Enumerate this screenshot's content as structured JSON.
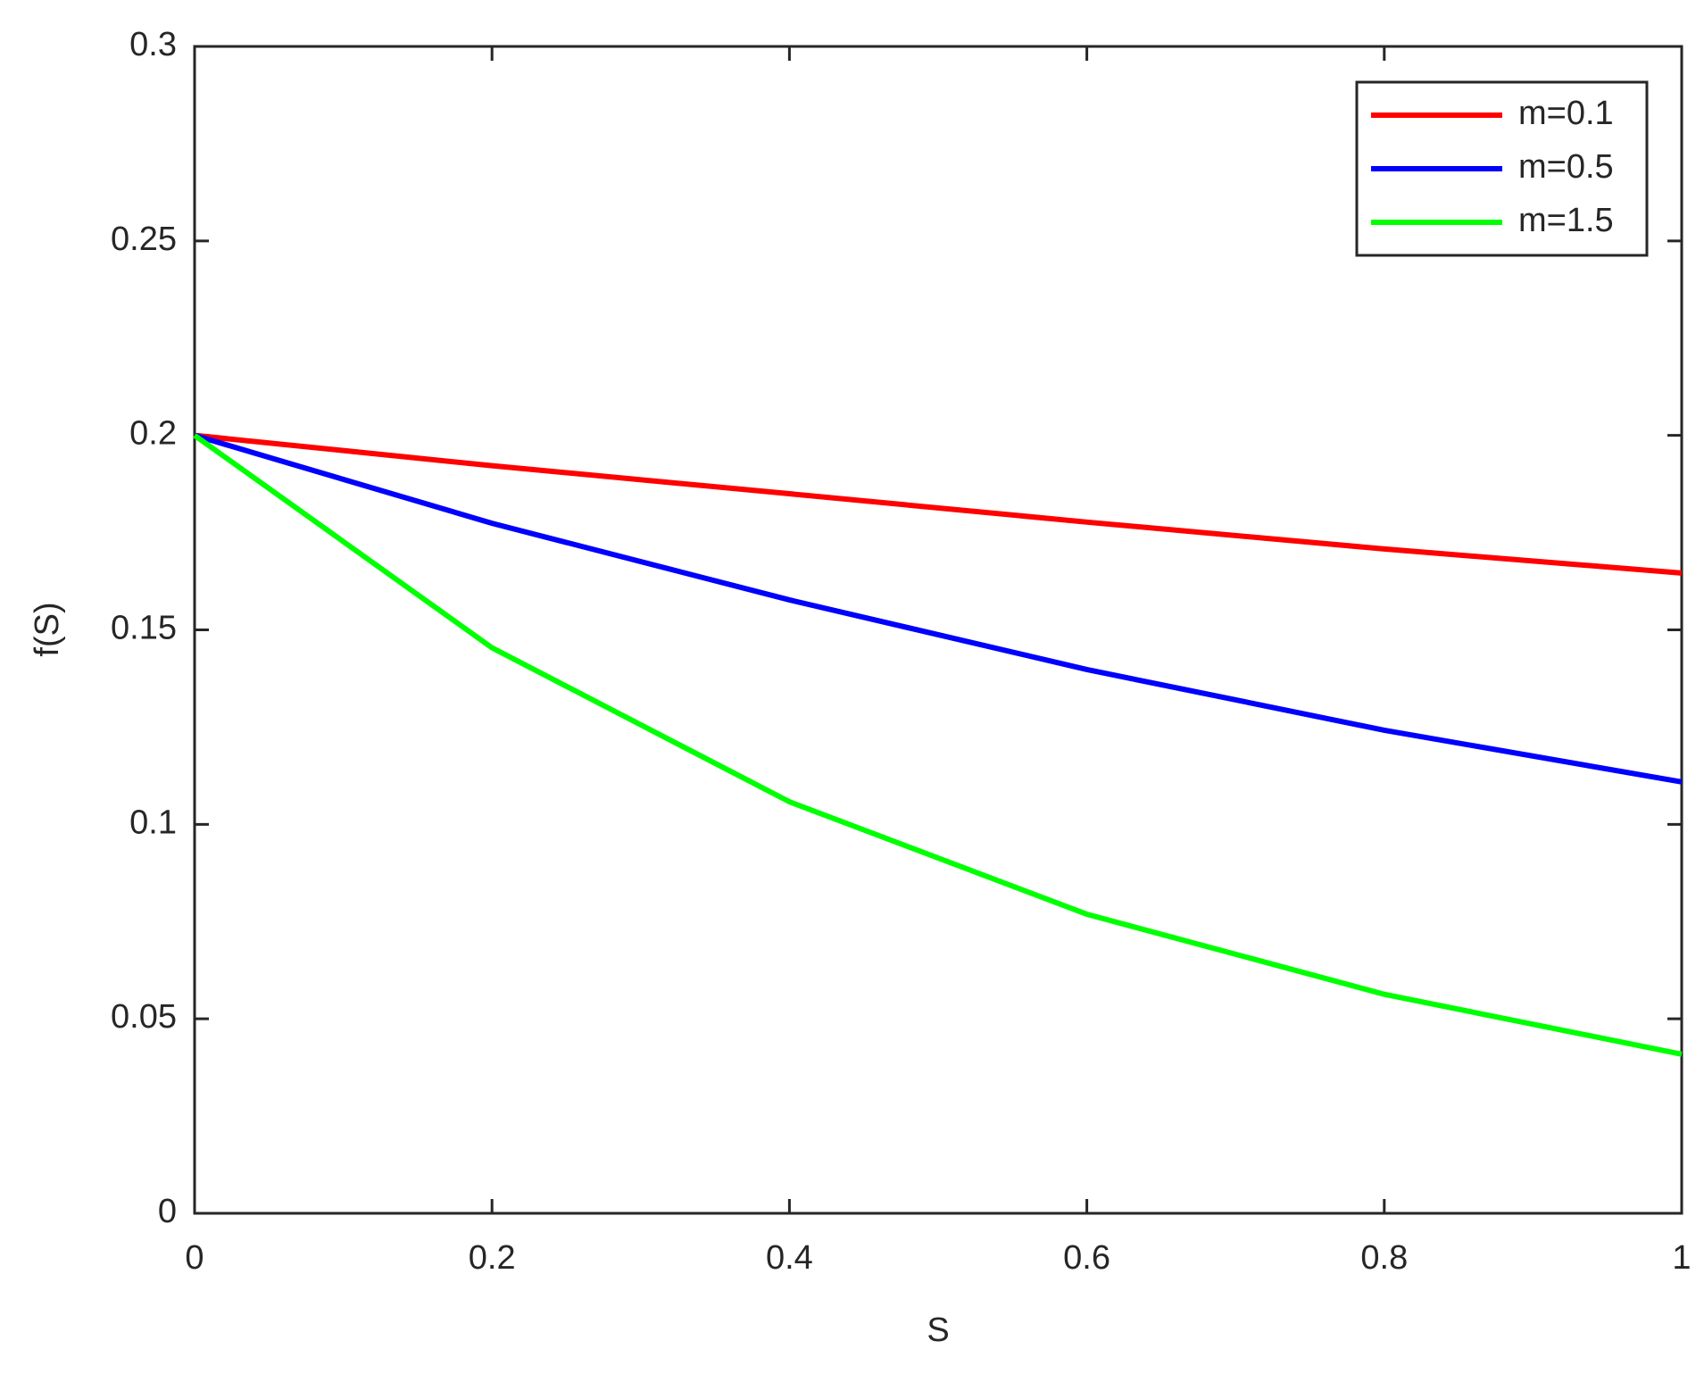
{
  "chart_data": {
    "type": "line",
    "x_label": "S",
    "y_label": "f(S)",
    "x": [
      0,
      0.2,
      0.4,
      0.6,
      0.8,
      1
    ],
    "series": [
      {
        "name": "m=0.1",
        "color": "#ff0000",
        "values": [
          0.2,
          0.1922,
          0.185,
          0.1777,
          0.1708,
          0.1646
        ]
      },
      {
        "name": "m=0.5",
        "color": "#0000ff",
        "values": [
          0.2,
          0.1774,
          0.1577,
          0.1398,
          0.1242,
          0.1109
        ]
      },
      {
        "name": "m=1.5",
        "color": "#00ff00",
        "values": [
          0.2,
          0.1454,
          0.1058,
          0.0769,
          0.0563,
          0.0409
        ]
      }
    ],
    "xlim": [
      0,
      1
    ],
    "ylim": [
      0,
      0.3
    ],
    "xticks": [
      0,
      0.2,
      0.4,
      0.6,
      0.8,
      1
    ],
    "yticks": [
      0,
      0.05,
      0.1,
      0.15,
      0.2,
      0.25,
      0.3
    ],
    "legend": "top-right",
    "grid": false
  }
}
